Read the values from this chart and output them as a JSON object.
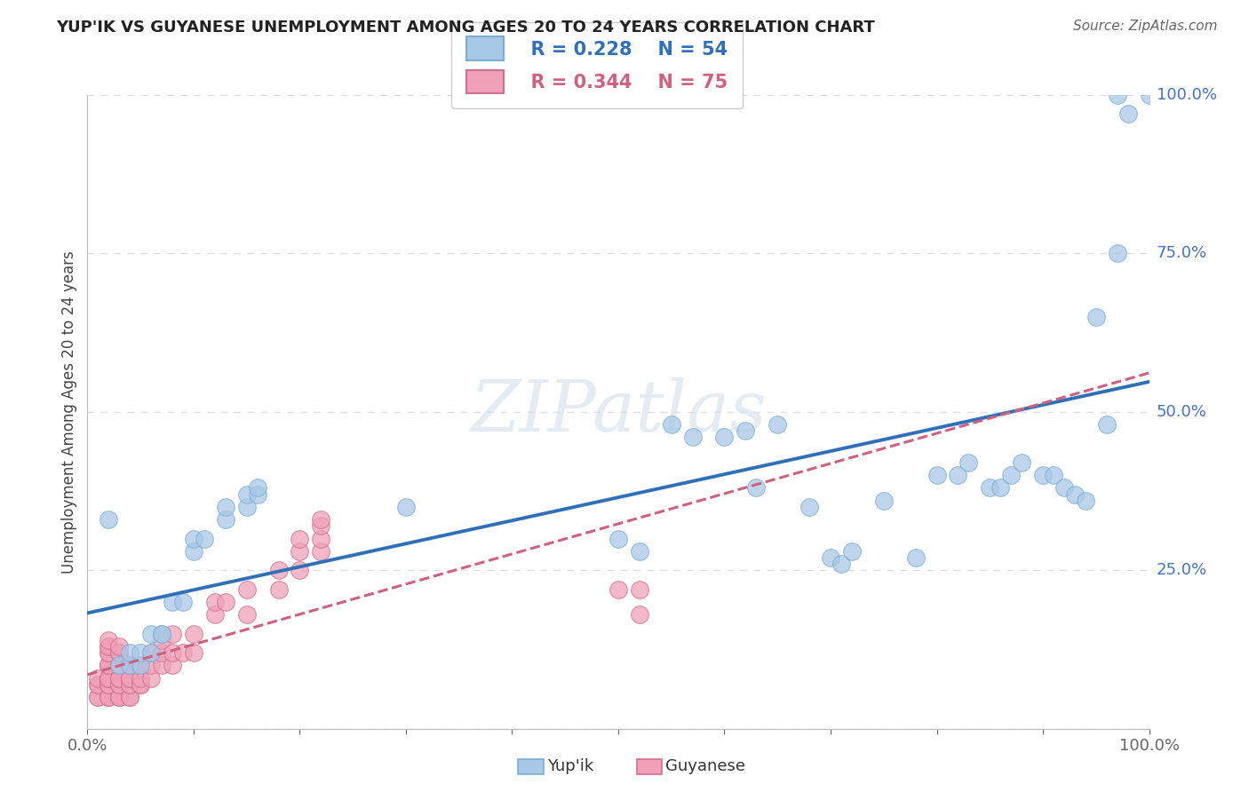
{
  "title": "YUP'IK VS GUYANESE UNEMPLOYMENT AMONG AGES 20 TO 24 YEARS CORRELATION CHART",
  "source": "Source: ZipAtlas.com",
  "ylabel": "Unemployment Among Ages 20 to 24 years",
  "xlim": [
    0,
    1
  ],
  "ylim": [
    0,
    1
  ],
  "ytick_labels": [
    "0.0%",
    "25.0%",
    "50.0%",
    "75.0%",
    "100.0%"
  ],
  "ytick_positions": [
    0.0,
    0.25,
    0.5,
    0.75,
    1.0
  ],
  "legend_r1": "R = 0.228",
  "legend_n1": "N = 54",
  "legend_r2": "R = 0.344",
  "legend_n2": "N = 75",
  "blue_color": "#a8c8e8",
  "blue_edge": "#7aafd0",
  "pink_color": "#f0a0b8",
  "pink_edge": "#d07090",
  "trend_blue_color": "#3070b8",
  "trend_pink_color": "#d06080",
  "watermark": "ZIPatlas",
  "background_color": "#ffffff",
  "grid_color": "#dddddd",
  "yupik_x": [
    0.02,
    0.03,
    0.04,
    0.04,
    0.05,
    0.05,
    0.06,
    0.06,
    0.07,
    0.07,
    0.08,
    0.09,
    0.1,
    0.1,
    0.11,
    0.13,
    0.13,
    0.15,
    0.15,
    0.16,
    0.16,
    0.3,
    0.5,
    0.52,
    0.55,
    0.57,
    0.6,
    0.62,
    0.63,
    0.65,
    0.68,
    0.7,
    0.71,
    0.72,
    0.75,
    0.78,
    0.8,
    0.82,
    0.83,
    0.85,
    0.86,
    0.87,
    0.88,
    0.9,
    0.91,
    0.92,
    0.93,
    0.94,
    0.95,
    0.96,
    0.97,
    0.97,
    0.98,
    1.0
  ],
  "yupik_y": [
    0.33,
    0.1,
    0.1,
    0.12,
    0.1,
    0.12,
    0.12,
    0.15,
    0.15,
    0.15,
    0.2,
    0.2,
    0.28,
    0.3,
    0.3,
    0.33,
    0.35,
    0.35,
    0.37,
    0.37,
    0.38,
    0.35,
    0.3,
    0.28,
    0.48,
    0.46,
    0.46,
    0.47,
    0.38,
    0.48,
    0.35,
    0.27,
    0.26,
    0.28,
    0.36,
    0.27,
    0.4,
    0.4,
    0.42,
    0.38,
    0.38,
    0.4,
    0.42,
    0.4,
    0.4,
    0.38,
    0.37,
    0.36,
    0.65,
    0.48,
    0.75,
    1.0,
    0.97,
    1.0
  ],
  "guyanese_x": [
    0.01,
    0.01,
    0.01,
    0.01,
    0.01,
    0.02,
    0.02,
    0.02,
    0.02,
    0.02,
    0.02,
    0.02,
    0.02,
    0.02,
    0.02,
    0.02,
    0.02,
    0.02,
    0.02,
    0.02,
    0.02,
    0.03,
    0.03,
    0.03,
    0.03,
    0.03,
    0.03,
    0.03,
    0.03,
    0.03,
    0.03,
    0.03,
    0.03,
    0.04,
    0.04,
    0.04,
    0.04,
    0.04,
    0.04,
    0.04,
    0.04,
    0.05,
    0.05,
    0.05,
    0.05,
    0.05,
    0.06,
    0.06,
    0.06,
    0.07,
    0.07,
    0.07,
    0.08,
    0.08,
    0.08,
    0.09,
    0.1,
    0.1,
    0.12,
    0.12,
    0.13,
    0.15,
    0.15,
    0.18,
    0.18,
    0.2,
    0.2,
    0.2,
    0.22,
    0.22,
    0.22,
    0.22,
    0.5,
    0.52,
    0.52
  ],
  "guyanese_y": [
    0.05,
    0.05,
    0.07,
    0.07,
    0.08,
    0.05,
    0.05,
    0.05,
    0.07,
    0.07,
    0.08,
    0.08,
    0.08,
    0.1,
    0.1,
    0.1,
    0.12,
    0.12,
    0.13,
    0.13,
    0.14,
    0.05,
    0.05,
    0.05,
    0.07,
    0.07,
    0.08,
    0.08,
    0.1,
    0.1,
    0.12,
    0.12,
    0.13,
    0.05,
    0.05,
    0.07,
    0.07,
    0.08,
    0.08,
    0.1,
    0.1,
    0.07,
    0.07,
    0.08,
    0.1,
    0.1,
    0.08,
    0.1,
    0.12,
    0.1,
    0.12,
    0.14,
    0.1,
    0.12,
    0.15,
    0.12,
    0.12,
    0.15,
    0.18,
    0.2,
    0.2,
    0.18,
    0.22,
    0.22,
    0.25,
    0.25,
    0.28,
    0.3,
    0.28,
    0.3,
    0.32,
    0.33,
    0.22,
    0.22,
    0.18
  ]
}
